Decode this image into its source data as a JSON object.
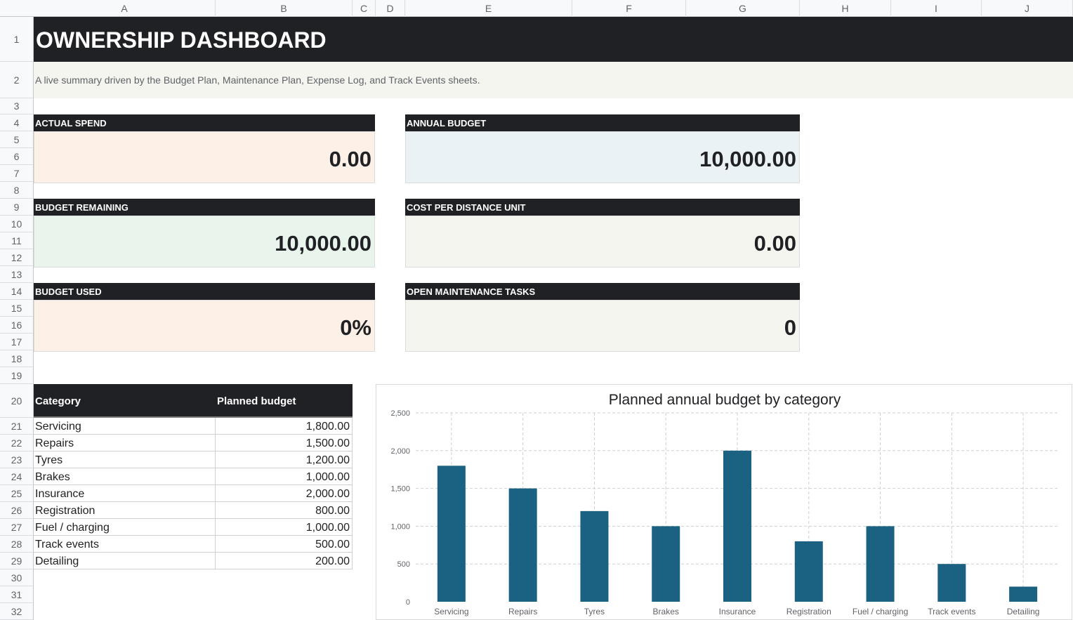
{
  "columns": [
    "A",
    "B",
    "C",
    "D",
    "E",
    "F",
    "G",
    "H",
    "I",
    "J"
  ],
  "rows": [
    "1",
    "2",
    "3",
    "4",
    "5",
    "6",
    "7",
    "8",
    "9",
    "10",
    "11",
    "12",
    "13",
    "14",
    "15",
    "16",
    "17",
    "18",
    "19",
    "20",
    "21",
    "22",
    "23",
    "24",
    "25",
    "26",
    "27",
    "28",
    "29",
    "30",
    "31",
    "32"
  ],
  "sheet": {
    "title": "OWNERSHIP DASHBOARD",
    "subtitle": "A live summary driven by the Budget Plan, Maintenance Plan, Expense Log, and Track Events sheets."
  },
  "kpis": {
    "actual_spend": {
      "label": "ACTUAL SPEND",
      "value": "0.00",
      "bg": "#fdf0e6"
    },
    "annual_budget": {
      "label": "ANNUAL BUDGET",
      "value": "10,000.00",
      "bg": "#eaf2f5"
    },
    "budget_remaining": {
      "label": "BUDGET REMAINING",
      "value": "10,000.00",
      "bg": "#e8f4ec"
    },
    "cost_per_distance": {
      "label": "COST PER DISTANCE UNIT",
      "value": "0.00",
      "bg": "#f5f5f0"
    },
    "budget_used": {
      "label": "BUDGET USED",
      "value": "0%",
      "bg": "#fdf0e6"
    },
    "open_tasks": {
      "label": "OPEN MAINTENANCE TASKS",
      "value": "0",
      "bg": "#f5f5f0"
    }
  },
  "table": {
    "headers": {
      "category": "Category",
      "planned": "Planned budget"
    },
    "rows": [
      {
        "category": "Servicing",
        "planned": "1,800.00"
      },
      {
        "category": "Repairs",
        "planned": "1,500.00"
      },
      {
        "category": "Tyres",
        "planned": "1,200.00"
      },
      {
        "category": "Brakes",
        "planned": "1,000.00"
      },
      {
        "category": "Insurance",
        "planned": "2,000.00"
      },
      {
        "category": "Registration",
        "planned": "800.00"
      },
      {
        "category": "Fuel / charging",
        "planned": "1,000.00"
      },
      {
        "category": "Track events",
        "planned": "500.00"
      },
      {
        "category": "Detailing",
        "planned": "200.00"
      }
    ]
  },
  "chart_data": {
    "type": "bar",
    "title": "Planned annual budget by category",
    "xlabel": "",
    "ylabel": "",
    "categories": [
      "Servicing",
      "Repairs",
      "Tyres",
      "Brakes",
      "Insurance",
      "Registration",
      "Fuel / charging",
      "Track events",
      "Detailing"
    ],
    "values": [
      1800,
      1500,
      1200,
      1000,
      2000,
      800,
      1000,
      500,
      200
    ],
    "ylim": [
      0,
      2500
    ],
    "yticks": [
      0,
      500,
      1000,
      1500,
      2000,
      2500
    ],
    "ytick_labels": [
      "0",
      "500",
      "1,000",
      "1,500",
      "2,000",
      "2,500"
    ],
    "grid": true,
    "legend": "none",
    "bar_color": "#1b6282"
  }
}
